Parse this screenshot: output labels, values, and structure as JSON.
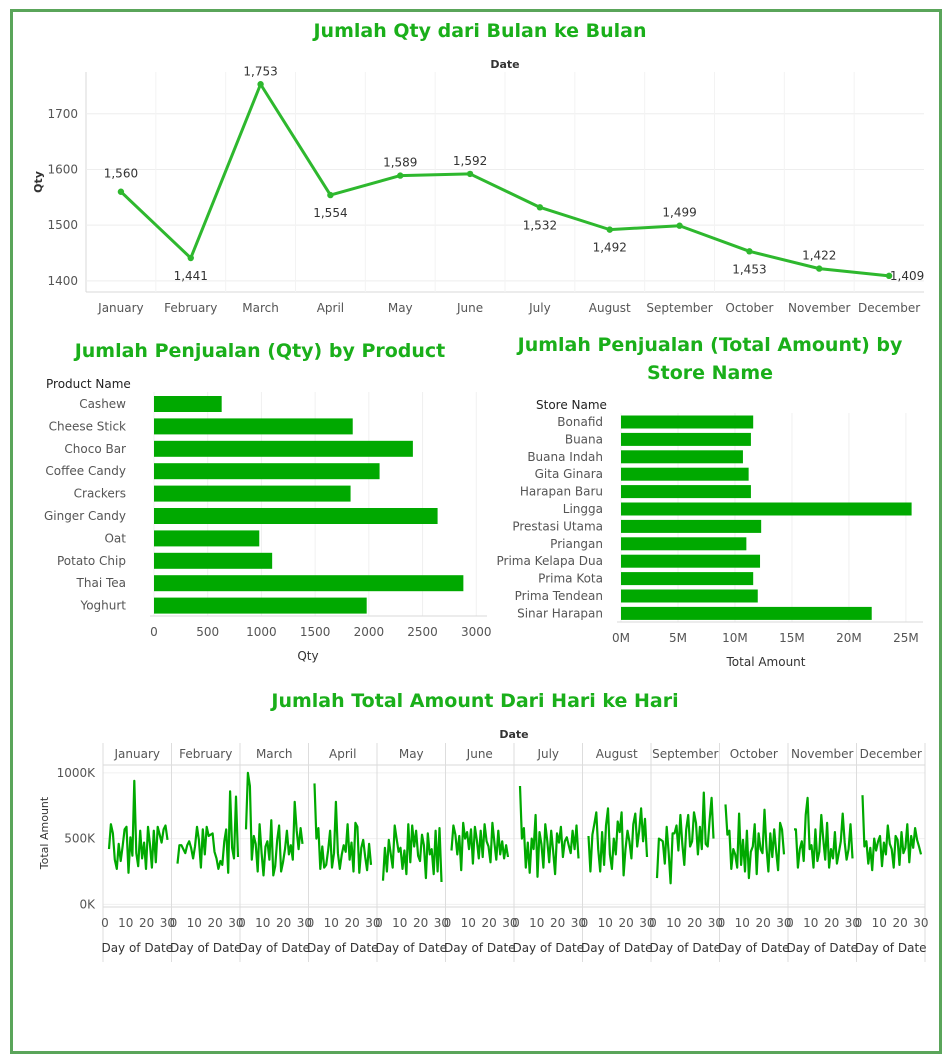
{
  "accent_color": "#00a900",
  "line_color": "#2eb82e",
  "frame_color": "#5aa55a",
  "chart_data": [
    {
      "type": "line",
      "title": "Jumlah Qty dari Bulan ke Bulan",
      "xlabel": "Date",
      "ylabel": "Qty",
      "categories": [
        "January",
        "February",
        "March",
        "April",
        "May",
        "June",
        "July",
        "August",
        "September",
        "October",
        "November",
        "December"
      ],
      "values": [
        1560,
        1441,
        1753,
        1554,
        1589,
        1592,
        1532,
        1492,
        1499,
        1453,
        1422,
        1409
      ],
      "data_labels": [
        "1,560",
        "1,441",
        "1,753",
        "1,554",
        "1,589",
        "1,592",
        "1,532",
        "1,492",
        "1,499",
        "1,453",
        "1,422",
        "1,409"
      ],
      "yticks": [
        1400,
        1500,
        1600,
        1700
      ],
      "ylim": [
        1380,
        1775
      ],
      "grid": true
    },
    {
      "type": "bar",
      "orientation": "horizontal",
      "title": "Jumlah Penjualan (Qty) by Product",
      "category_header": "Product Name",
      "xlabel": "Qty",
      "categories": [
        "Cashew",
        "Cheese Stick",
        "Choco Bar",
        "Coffee Candy",
        "Crackers",
        "Ginger Candy",
        "Oat",
        "Potato Chip",
        "Thai Tea",
        "Yoghurt"
      ],
      "values": [
        630,
        1850,
        2410,
        2100,
        1830,
        2640,
        980,
        1100,
        2880,
        1980
      ],
      "xticks": [
        "0",
        "500",
        "1000",
        "1500",
        "2000",
        "2500",
        "3000"
      ],
      "xtick_values": [
        0,
        500,
        1000,
        1500,
        2000,
        2500,
        3000
      ],
      "xlim": [
        0,
        3100
      ]
    },
    {
      "type": "bar",
      "orientation": "horizontal",
      "title": "Jumlah Penjualan (Total Amount) by Store Name",
      "category_header": "Store Name",
      "xlabel": "Total Amount",
      "categories": [
        "Bonafid",
        "Buana",
        "Buana Indah",
        "Gita Ginara",
        "Harapan Baru",
        "Lingga",
        "Prestasi Utama",
        "Priangan",
        "Prima Kelapa Dua",
        "Prima Kota",
        "Prima Tendean",
        "Sinar Harapan"
      ],
      "values": [
        11.6,
        11.4,
        10.7,
        11.2,
        11.4,
        25.5,
        12.3,
        11.0,
        12.2,
        11.6,
        12.0,
        22.0
      ],
      "unit": "M",
      "xticks": [
        "0M",
        "5M",
        "10M",
        "15M",
        "20M",
        "25M"
      ],
      "xtick_values": [
        0,
        5,
        10,
        15,
        20,
        25
      ],
      "xlim": [
        0,
        26.5
      ]
    },
    {
      "type": "line",
      "title": "Jumlah Total Amount Dari Hari ke Hari",
      "xlabel": "Date",
      "ylabel": "Total Amount",
      "panel_xlabel": "Day of Date",
      "panels": [
        "January",
        "February",
        "March",
        "April",
        "May",
        "June",
        "July",
        "August",
        "September",
        "October",
        "November",
        "December"
      ],
      "yticks": [
        "0K",
        "500K",
        "1000K"
      ],
      "ytick_values": [
        0,
        500,
        1000
      ],
      "ylim": [
        -20,
        1060
      ],
      "panel_xticks": [
        "0",
        "10",
        "20",
        "30"
      ],
      "panel_xtick_values": [
        0,
        10,
        20,
        30
      ],
      "series": [
        {
          "values": [
            420,
            610,
            540,
            340,
            270,
            460,
            330,
            440,
            570,
            590,
            240,
            510,
            370,
            940,
            390,
            290,
            560,
            350,
            470,
            270,
            590,
            460,
            280,
            560,
            320,
            590,
            530,
            470,
            570,
            600,
            490
          ]
        },
        {
          "values": [
            310,
            450,
            450,
            420,
            390,
            450,
            480,
            430,
            350,
            440,
            590,
            490,
            280,
            570,
            380,
            590,
            520,
            530,
            540,
            400,
            350,
            270,
            330,
            300,
            480,
            570,
            240,
            860,
            430,
            350,
            820,
            360
          ]
        },
        {
          "values": [
            570,
            1000,
            900,
            340,
            520,
            460,
            250,
            610,
            390,
            220,
            440,
            480,
            340,
            640,
            220,
            290,
            490,
            600,
            250,
            320,
            420,
            560,
            380,
            450,
            340,
            780,
            560,
            420,
            580,
            460
          ]
        },
        {
          "values": [
            920,
            500,
            580,
            270,
            440,
            280,
            300,
            410,
            560,
            280,
            390,
            780,
            390,
            270,
            380,
            450,
            400,
            610,
            340,
            470,
            250,
            620,
            590,
            240,
            430,
            490,
            360,
            260,
            460,
            300
          ]
        },
        {
          "values": [
            180,
            430,
            250,
            490,
            380,
            280,
            600,
            500,
            400,
            430,
            270,
            410,
            230,
            610,
            320,
            600,
            440,
            560,
            370,
            330,
            530,
            450,
            200,
            540,
            380,
            420,
            230,
            560,
            250,
            580,
            170
          ]
        },
        {
          "values": [
            410,
            600,
            530,
            380,
            520,
            260,
            620,
            500,
            550,
            420,
            570,
            310,
            590,
            490,
            350,
            560,
            360,
            610,
            480,
            440,
            320,
            620,
            470,
            340,
            560,
            380,
            480,
            350,
            450,
            360
          ]
        },
        {
          "values": [
            900,
            500,
            580,
            280,
            470,
            240,
            500,
            420,
            680,
            210,
            550,
            460,
            280,
            610,
            480,
            320,
            560,
            410,
            230,
            540,
            470,
            590,
            360,
            480,
            510,
            450,
            390,
            560,
            420,
            600,
            350
          ]
        },
        {
          "values": [
            520,
            250,
            530,
            610,
            700,
            420,
            250,
            550,
            300,
            600,
            730,
            380,
            270,
            500,
            380,
            630,
            550,
            700,
            220,
            420,
            560,
            480,
            350,
            610,
            690,
            440,
            560,
            730,
            480,
            650,
            360
          ]
        },
        {
          "values": [
            200,
            500,
            490,
            480,
            310,
            590,
            390,
            160,
            540,
            540,
            600,
            410,
            680,
            460,
            300,
            570,
            680,
            440,
            480,
            700,
            620,
            380,
            590,
            420,
            850,
            460,
            440,
            640,
            810,
            500
          ]
        },
        {
          "values": [
            760,
            530,
            560,
            270,
            420,
            380,
            280,
            690,
            300,
            490,
            250,
            560,
            200,
            400,
            440,
            610,
            230,
            540,
            420,
            390,
            720,
            440,
            250,
            540,
            360,
            570,
            400,
            260,
            620,
            570,
            380
          ]
        },
        {
          "values": [
            570,
            570,
            280,
            420,
            480,
            330,
            680,
            810,
            420,
            450,
            280,
            570,
            330,
            400,
            680,
            500,
            340,
            620,
            280,
            420,
            350,
            550,
            310,
            390,
            480,
            690,
            470,
            340,
            420,
            610,
            350
          ]
        },
        {
          "values": [
            830,
            440,
            480,
            310,
            430,
            260,
            500,
            410,
            480,
            520,
            290,
            470,
            380,
            600,
            460,
            420,
            280,
            520,
            490,
            300,
            550,
            390,
            430,
            610,
            320,
            520,
            430,
            580,
            490,
            440,
            380
          ]
        }
      ]
    }
  ]
}
